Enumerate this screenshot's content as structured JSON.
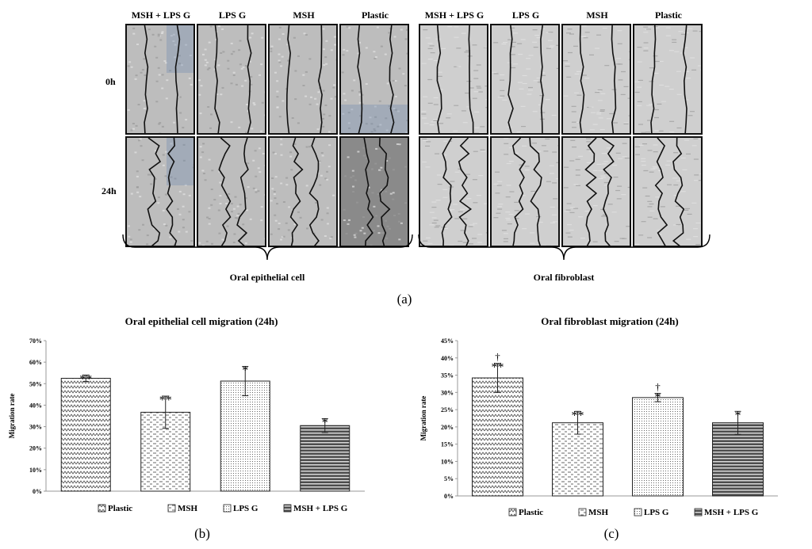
{
  "figure_a": {
    "column_headers": [
      "MSH + LPS G",
      "LPS G",
      "MSH",
      "Plastic",
      "MSH + LPS G",
      "LPS G",
      "MSH",
      "Plastic"
    ],
    "row_labels": [
      "0h",
      "24h"
    ],
    "group_labels": [
      "Oral epithelial cell",
      "Oral fibroblast"
    ],
    "panel_label": "(a)"
  },
  "figure_b": {
    "panel_label": "(b)"
  },
  "figure_c": {
    "panel_label": "(c)"
  },
  "colors": {
    "frame": "#111111",
    "micrograph_bg": "#c9c9c9",
    "epithelial_blue_tint": "#6f89b0"
  },
  "chart_data": [
    {
      "type": "bar",
      "title": "Oral epithelial cell migration (24h)",
      "ylabel": "Migration rate",
      "xlabel": "",
      "categories": [
        "Plastic",
        "MSH",
        "LPS G",
        "MSH + LPS G"
      ],
      "values": [
        0.525,
        0.367,
        0.512,
        0.305
      ],
      "errors": [
        0.015,
        0.075,
        0.068,
        0.032
      ],
      "annotations": [
        "**",
        "**",
        "*",
        "*"
      ],
      "ylim": [
        0,
        0.7
      ],
      "yticks": [
        "0%",
        "10%",
        "20%",
        "30%",
        "40%",
        "50%",
        "60%",
        "70%"
      ],
      "legend": [
        "Plastic",
        "MSH",
        "LPS G",
        "MSH + LPS G"
      ],
      "legend_position": "bottom",
      "grid": false
    },
    {
      "type": "bar",
      "title": "Oral fibroblast migration (24h)",
      "ylabel": "Migration rate",
      "xlabel": "",
      "categories": [
        "Plastic",
        "MSH",
        "LPS G",
        "MSH + LPS G"
      ],
      "values": [
        0.342,
        0.212,
        0.285,
        0.212
      ],
      "errors": [
        0.042,
        0.033,
        0.012,
        0.033
      ],
      "annotations": [
        "**",
        "**",
        "*",
        "*"
      ],
      "annotations_top": [
        "†",
        "",
        "†",
        ""
      ],
      "ylim": [
        0,
        0.45
      ],
      "yticks": [
        "0%",
        "5%",
        "10%",
        "15%",
        "20%",
        "25%",
        "30%",
        "35%",
        "40%",
        "45%"
      ],
      "legend": [
        "Plastic",
        "MSH",
        "LPS G",
        "MSH + LPS G"
      ],
      "legend_position": "bottom",
      "grid": false
    }
  ]
}
